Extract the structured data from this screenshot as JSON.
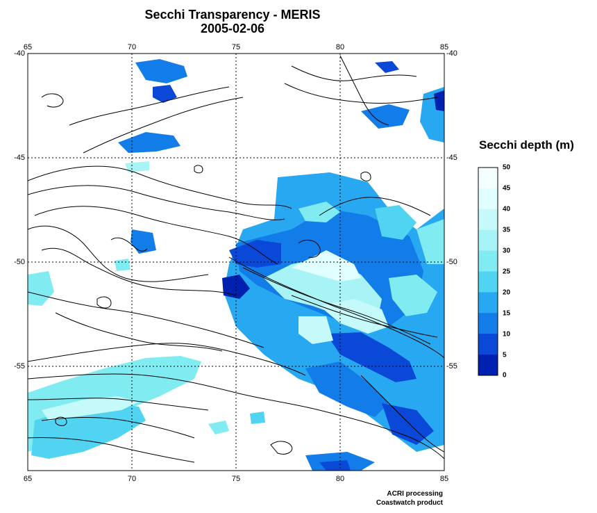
{
  "map": {
    "title": "Secchi Transparency - MERIS",
    "date": "2005-02-06",
    "x_ticks": [
      "65",
      "70",
      "75",
      "80",
      "85"
    ],
    "y_ticks": [
      "-40",
      "-45",
      "-50",
      "-55"
    ],
    "lon_range": [
      65,
      85
    ],
    "lat_range": [
      -60,
      -40
    ],
    "grid": "dotted"
  },
  "legend": {
    "title": "Secchi depth (m)",
    "labels": [
      "50",
      "45",
      "40",
      "35",
      "30",
      "25",
      "20",
      "15",
      "10",
      "5",
      "0"
    ],
    "colors": [
      "#f4ffff",
      "#e2ffff",
      "#c6fafa",
      "#a8f3f5",
      "#80ecf2",
      "#50d4f2",
      "#28a8f0",
      "#127ce8",
      "#0a48d8",
      "#0020b0"
    ]
  },
  "credits": {
    "line1": "ACRI processing",
    "line2": "Coastwatch product"
  }
}
